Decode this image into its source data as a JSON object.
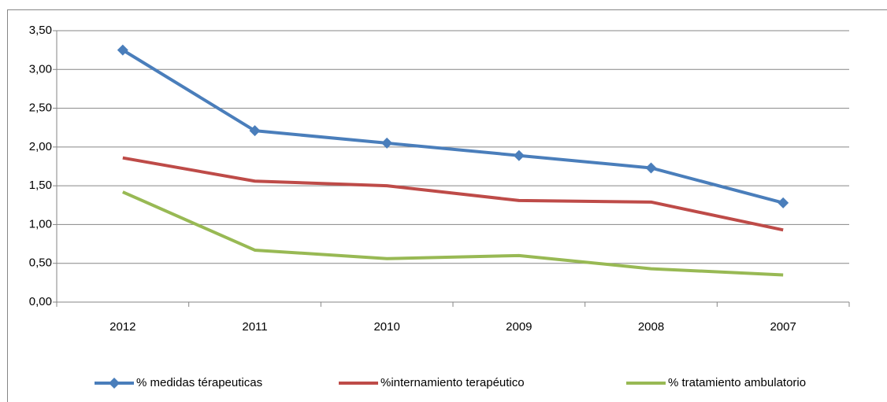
{
  "chart_data": {
    "type": "line",
    "categories": [
      "2012",
      "2011",
      "2010",
      "2009",
      "2008",
      "2007"
    ],
    "series": [
      {
        "name": "% medidas térapeuticas",
        "color": "#4a7ebb",
        "marker": "diamond",
        "values": [
          3.25,
          2.21,
          2.05,
          1.89,
          1.73,
          1.28
        ]
      },
      {
        "name": "%internamiento terapéutico",
        "color": "#be4b48",
        "values": [
          1.86,
          1.56,
          1.5,
          1.31,
          1.29,
          0.93
        ]
      },
      {
        "name": "% tratamiento ambulatorio",
        "color": "#98b954",
        "values": [
          1.42,
          0.67,
          0.56,
          0.6,
          0.43,
          0.35
        ]
      }
    ],
    "ylim": [
      0,
      3.5
    ],
    "yticks": [
      {
        "value": 0,
        "label": "0,00"
      },
      {
        "value": 0.5,
        "label": "0,50"
      },
      {
        "value": 1,
        "label": "1,00"
      },
      {
        "value": 1.5,
        "label": "1,50"
      },
      {
        "value": 2,
        "label": "2,00"
      },
      {
        "value": 2.5,
        "label": "2,50"
      },
      {
        "value": 3,
        "label": "3,00"
      },
      {
        "value": 3.5,
        "label": "3,50"
      }
    ],
    "grid": true,
    "legend": "bottom"
  }
}
